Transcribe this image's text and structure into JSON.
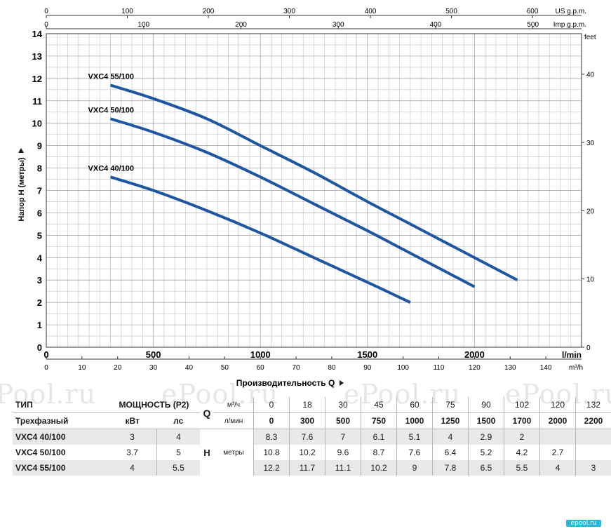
{
  "chart_data": {
    "type": "line",
    "ylabel": "Напор H (метры)",
    "xlabel": "Производительность Q",
    "x_unit_main": "l/min",
    "x_unit_m3h": "m³/h",
    "x_unit_us": "US g.p.m.",
    "x_unit_imp": "Imp g.p.m.",
    "y_unit_right": "feet",
    "xlim": [
      0,
      2500
    ],
    "ylim": [
      0,
      14
    ],
    "x_ticks_main": [
      "0",
      "500",
      "1000",
      "1500",
      "2000"
    ],
    "x_ticks_m3h": [
      "0",
      "10",
      "20",
      "30",
      "40",
      "50",
      "60",
      "70",
      "80",
      "90",
      "100",
      "110",
      "120",
      "130",
      "140"
    ],
    "x_ticks_us": [
      "0",
      "100",
      "200",
      "300",
      "400",
      "500",
      "600"
    ],
    "x_ticks_imp": [
      "0",
      "100",
      "200",
      "300",
      "400",
      "500"
    ],
    "y_ticks": [
      "0",
      "1",
      "2",
      "3",
      "4",
      "5",
      "6",
      "7",
      "8",
      "9",
      "10",
      "11",
      "12",
      "13",
      "14"
    ],
    "y_ticks_feet": [
      "0",
      "10",
      "20",
      "30",
      "40"
    ],
    "grid": true,
    "series": [
      {
        "name": "VXC4 55/100",
        "x": [
          300,
          500,
          750,
          1000,
          1250,
          1500,
          1700,
          2000,
          2200
        ],
        "y": [
          11.7,
          11.1,
          10.2,
          9,
          7.8,
          6.5,
          5.5,
          4,
          3
        ]
      },
      {
        "name": "VXC4 50/100",
        "x": [
          300,
          500,
          750,
          1000,
          1250,
          1500,
          1700,
          2000
        ],
        "y": [
          10.2,
          9.6,
          8.7,
          7.6,
          6.4,
          5.2,
          4.2,
          2.7
        ]
      },
      {
        "name": "VXC4 40/100",
        "x": [
          300,
          500,
          750,
          1000,
          1250,
          1500,
          1700
        ],
        "y": [
          7.6,
          7,
          6.1,
          5.1,
          4,
          2.9,
          2
        ]
      }
    ]
  },
  "watermark": [
    "ePool.ru",
    "ePool.ru",
    "ePool.ru",
    "ePool.ru"
  ],
  "logo": "epool.ru",
  "table": {
    "type_label": "ТИП",
    "phase_label": "Трехфазный",
    "power_label": "МОЩНОСТЬ (P2)",
    "kw_label": "кВт",
    "hp_label": "лс",
    "q_label": "Q",
    "q_unit1": "м³/ч",
    "q_unit2": "л/мин",
    "h_label": "H",
    "h_unit": "метры",
    "q_m3h": [
      "0",
      "18",
      "30",
      "45",
      "60",
      "75",
      "90",
      "102",
      "120",
      "132"
    ],
    "q_lmin": [
      "0",
      "300",
      "500",
      "750",
      "1000",
      "1250",
      "1500",
      "1700",
      "2000",
      "2200"
    ],
    "rows": [
      {
        "name": "VXC4 40/100",
        "kw": "3",
        "hp": "4",
        "h": [
          "8.3",
          "7.6",
          "7",
          "6.1",
          "5.1",
          "4",
          "2.9",
          "2",
          "",
          ""
        ]
      },
      {
        "name": "VXC4 50/100",
        "kw": "3.7",
        "hp": "5",
        "h": [
          "10.8",
          "10.2",
          "9.6",
          "8.7",
          "7.6",
          "6.4",
          "5.2",
          "4.2",
          "2.7",
          ""
        ]
      },
      {
        "name": "VXC4 55/100",
        "kw": "4",
        "hp": "5.5",
        "h": [
          "12.2",
          "11.7",
          "11.1",
          "10.2",
          "9",
          "7.8",
          "6.5",
          "5.5",
          "4",
          "3"
        ]
      }
    ]
  }
}
